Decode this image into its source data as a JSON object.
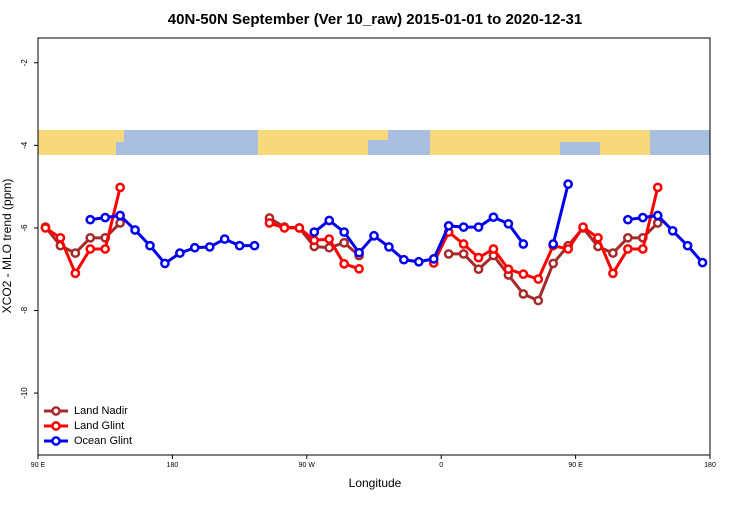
{
  "chart_data": {
    "type": "line",
    "title": "40N-50N September (Ver 10_raw)   2015-01-01 to 2020-12-31",
    "x_label": "Longitude",
    "y_label": "XCO2 - MLO trend (ppm)",
    "x": [
      95,
      105,
      115,
      125,
      135,
      145,
      155,
      165,
      175,
      185,
      195,
      205,
      215,
      225,
      235,
      245,
      255,
      265,
      275,
      285,
      295,
      305,
      315,
      325,
      335,
      345,
      355,
      365,
      375,
      385,
      395,
      405,
      415,
      425,
      435,
      445,
      455,
      465,
      475,
      485,
      495,
      505,
      515,
      525,
      535
    ],
    "series": [
      {
        "name": "Land Nadir",
        "color": "#a52a2a",
        "values": [
          -5.98,
          -6.43,
          -6.61,
          -6.24,
          -6.24,
          -5.88,
          null,
          null,
          null,
          null,
          null,
          null,
          null,
          null,
          null,
          -5.76,
          -5.98,
          -6.0,
          -6.45,
          -6.48,
          -6.36,
          -6.67,
          null,
          null,
          null,
          null,
          null,
          -6.63,
          -6.63,
          -7.0,
          -6.67,
          -7.14,
          -7.6,
          -7.76,
          -6.86,
          -6.43,
          -6.0,
          -6.45,
          -6.61,
          -6.24,
          -6.24,
          -5.88,
          null,
          null,
          null
        ]
      },
      {
        "name": "Land Glint",
        "color": "#ff0000",
        "values": [
          -6.0,
          -6.24,
          -7.1,
          -6.51,
          -6.51,
          -5.02,
          null,
          null,
          null,
          null,
          null,
          null,
          null,
          null,
          null,
          -5.88,
          -6.0,
          -6.0,
          -6.3,
          -6.27,
          -6.87,
          -6.99,
          null,
          null,
          null,
          null,
          -6.85,
          -6.1,
          -6.39,
          -6.72,
          -6.51,
          -7.0,
          -7.12,
          -7.24,
          -6.43,
          -6.51,
          -5.98,
          -6.24,
          -7.1,
          -6.51,
          -6.51,
          -5.02,
          null,
          null,
          null
        ]
      },
      {
        "name": "Ocean Glint",
        "color": "#0000ee",
        "values": [
          null,
          null,
          null,
          -5.8,
          -5.75,
          -5.7,
          -6.05,
          -6.43,
          -6.86,
          -6.61,
          -6.48,
          -6.46,
          -6.27,
          -6.43,
          -6.43,
          null,
          null,
          null,
          -6.1,
          -5.82,
          -6.1,
          -6.6,
          -6.19,
          -6.46,
          -6.77,
          -6.82,
          -6.75,
          -5.95,
          -5.98,
          -5.98,
          -5.74,
          -5.9,
          -6.39,
          null,
          -6.39,
          -4.94,
          null,
          null,
          null,
          -5.8,
          -5.75,
          -5.7,
          -6.07,
          -6.43,
          -6.84
        ]
      }
    ],
    "xlim": [
      90,
      540
    ],
    "xticks": [
      {
        "value": 90,
        "label": "90 E"
      },
      {
        "value": 180,
        "label": "180"
      },
      {
        "value": 270,
        "label": "90 W"
      },
      {
        "value": 360,
        "label": "0"
      },
      {
        "value": 450,
        "label": "90 E"
      },
      {
        "value": 540,
        "label": "180"
      }
    ],
    "ylim": [
      -11.5,
      -1.4
    ],
    "yticks": [
      -10,
      -8,
      -6,
      -4,
      -2
    ],
    "legend": "bottomleft"
  }
}
